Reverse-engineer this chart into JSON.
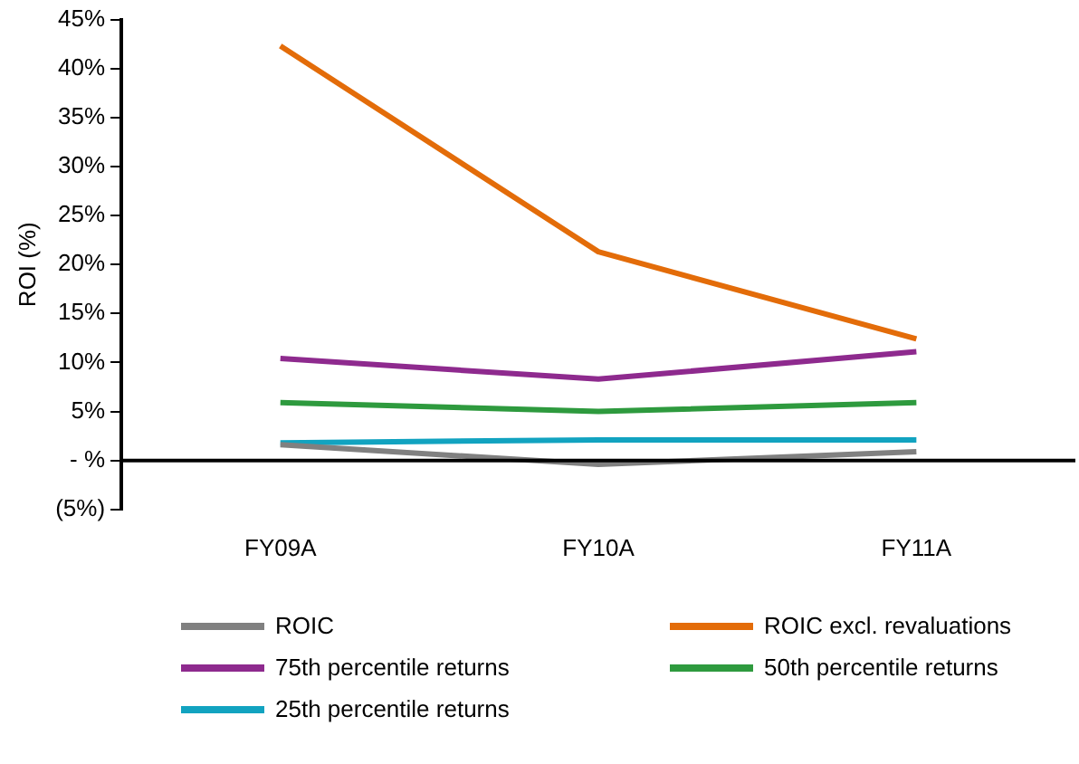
{
  "chart_data": {
    "type": "line",
    "ylabel": "ROI (%)",
    "categories": [
      "FY09A",
      "FY10A",
      "FY11A"
    ],
    "series": [
      {
        "name": "ROIC",
        "color": "#808080",
        "values": [
          1.6,
          -0.4,
          0.9
        ]
      },
      {
        "name": "ROIC excl. revaluations",
        "color": "#e36c09",
        "values": [
          42.3,
          21.3,
          12.4
        ]
      },
      {
        "name": "75th percentile returns",
        "color": "#8e2a8e",
        "values": [
          10.4,
          8.3,
          11.1
        ]
      },
      {
        "name": "50th percentile returns",
        "color": "#2e9a3e",
        "values": [
          5.9,
          5.0,
          5.9
        ]
      },
      {
        "name": "25th percentile returns",
        "color": "#12a3c0",
        "values": [
          1.8,
          2.1,
          2.1
        ]
      }
    ],
    "ylim": [
      -5,
      45
    ],
    "yticks": [
      {
        "value": -5,
        "label": "(5%)"
      },
      {
        "value": 0,
        "label": "- %"
      },
      {
        "value": 5,
        "label": "5%"
      },
      {
        "value": 10,
        "label": "10%"
      },
      {
        "value": 15,
        "label": "15%"
      },
      {
        "value": 20,
        "label": "20%"
      },
      {
        "value": 25,
        "label": "25%"
      },
      {
        "value": 30,
        "label": "30%"
      },
      {
        "value": 35,
        "label": "35%"
      },
      {
        "value": 40,
        "label": "40%"
      },
      {
        "value": 45,
        "label": "45%"
      }
    ],
    "ref_lines": [
      {
        "axis": "y",
        "value": 0,
        "color": "#000000"
      }
    ],
    "legend": "bottom",
    "grid": false,
    "marker": "none",
    "line_style": "solid"
  }
}
